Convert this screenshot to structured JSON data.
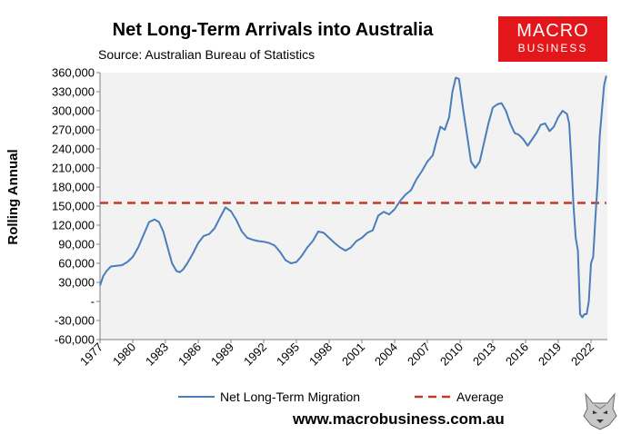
{
  "header": {
    "title": "Net Long-Term Arrivals into Australia",
    "subtitle": "Source: Australian Bureau of Statistics"
  },
  "logo": {
    "line1": "MACRO",
    "line2": "BUSINESS",
    "color": "#e3161c"
  },
  "footer": {
    "website": "www.macrobusiness.com.au"
  },
  "chart_data": {
    "type": "line",
    "title": "Net Long-Term Arrivals into Australia",
    "subtitle": "Source: Australian Bureau of Statistics",
    "xlabel": "",
    "ylabel": "Rolling Annual",
    "ylim": [
      -60000,
      360000
    ],
    "y_ticks": [
      -60000,
      -30000,
      0,
      30000,
      60000,
      90000,
      120000,
      150000,
      180000,
      210000,
      240000,
      270000,
      300000,
      330000,
      360000
    ],
    "y_tick_labels": [
      "-60,000",
      "-30,000",
      "-",
      "30,000",
      "60,000",
      "90,000",
      "120,000",
      "150,000",
      "180,000",
      "210,000",
      "240,000",
      "270,000",
      "300,000",
      "330,000",
      "360,000"
    ],
    "xlim": [
      1977,
      2023.5
    ],
    "x_ticks": [
      1977,
      1980,
      1983,
      1986,
      1989,
      1992,
      1995,
      1998,
      2001,
      2004,
      2007,
      2010,
      2013,
      2016,
      2019,
      2022
    ],
    "x_tick_labels": [
      "1977",
      "1980",
      "1983",
      "1986",
      "1989",
      "1992",
      "1995",
      "1998",
      "2001",
      "2004",
      "2007",
      "2010",
      "2013",
      "2016",
      "2019",
      "2022"
    ],
    "grid": false,
    "plot_background": "#f2f2f2",
    "legend_position": "bottom",
    "series": [
      {
        "name": "Net Long-Term Migration",
        "color": "#4a7ebb",
        "style": "solid",
        "x": [
          1977.0,
          1977.3,
          1977.6,
          1978.0,
          1978.5,
          1979.0,
          1979.5,
          1980.0,
          1980.5,
          1981.0,
          1981.5,
          1982.0,
          1982.4,
          1982.8,
          1983.2,
          1983.6,
          1984.0,
          1984.3,
          1984.6,
          1985.0,
          1985.5,
          1986.0,
          1986.5,
          1987.0,
          1987.5,
          1988.0,
          1988.5,
          1989.0,
          1989.5,
          1990.0,
          1990.5,
          1991.0,
          1991.5,
          1992.0,
          1992.5,
          1993.0,
          1993.5,
          1994.0,
          1994.5,
          1995.0,
          1995.5,
          1996.0,
          1996.5,
          1997.0,
          1997.5,
          1998.0,
          1998.5,
          1999.0,
          1999.5,
          2000.0,
          2000.5,
          2001.0,
          2001.5,
          2002.0,
          2002.5,
          2003.0,
          2003.5,
          2004.0,
          2004.5,
          2005.0,
          2005.5,
          2006.0,
          2006.5,
          2007.0,
          2007.5,
          2007.8,
          2008.2,
          2008.6,
          2009.0,
          2009.3,
          2009.6,
          2009.9,
          2010.3,
          2010.7,
          2011.0,
          2011.4,
          2011.8,
          2012.2,
          2012.6,
          2013.0,
          2013.4,
          2013.8,
          2014.2,
          2014.6,
          2015.0,
          2015.4,
          2015.8,
          2016.2,
          2016.6,
          2017.0,
          2017.4,
          2017.8,
          2018.2,
          2018.6,
          2019.0,
          2019.4,
          2019.8,
          2020.0,
          2020.2,
          2020.4,
          2020.6,
          2020.8,
          2021.0,
          2021.2,
          2021.4,
          2021.6,
          2021.8,
          2022.0,
          2022.2,
          2022.4,
          2022.6,
          2022.8,
          2023.0,
          2023.2,
          2023.4
        ],
        "values": [
          25000,
          40000,
          48000,
          55000,
          56000,
          57000,
          62000,
          70000,
          85000,
          105000,
          125000,
          129000,
          125000,
          110000,
          85000,
          60000,
          48000,
          46000,
          50000,
          60000,
          75000,
          92000,
          103000,
          106000,
          115000,
          132000,
          148000,
          142000,
          128000,
          110000,
          100000,
          97000,
          95000,
          94000,
          92000,
          88000,
          78000,
          65000,
          60000,
          62000,
          72000,
          85000,
          95000,
          110000,
          108000,
          100000,
          92000,
          85000,
          80000,
          85000,
          95000,
          100000,
          108000,
          112000,
          135000,
          141000,
          137000,
          145000,
          158000,
          168000,
          175000,
          192000,
          205000,
          220000,
          230000,
          250000,
          275000,
          270000,
          290000,
          330000,
          352000,
          350000,
          300000,
          255000,
          220000,
          210000,
          220000,
          250000,
          280000,
          305000,
          310000,
          312000,
          300000,
          280000,
          265000,
          262000,
          255000,
          245000,
          255000,
          265000,
          278000,
          280000,
          268000,
          275000,
          290000,
          300000,
          295000,
          280000,
          220000,
          150000,
          100000,
          80000,
          -20000,
          -25000,
          -20000,
          -20000,
          0,
          60000,
          70000,
          130000,
          185000,
          260000,
          300000,
          340000,
          355000
        ]
      },
      {
        "name": "Average",
        "color": "#c0392b",
        "style": "dashed",
        "x": [
          1977.0,
          2023.4
        ],
        "values": [
          155000,
          155000
        ]
      }
    ]
  }
}
